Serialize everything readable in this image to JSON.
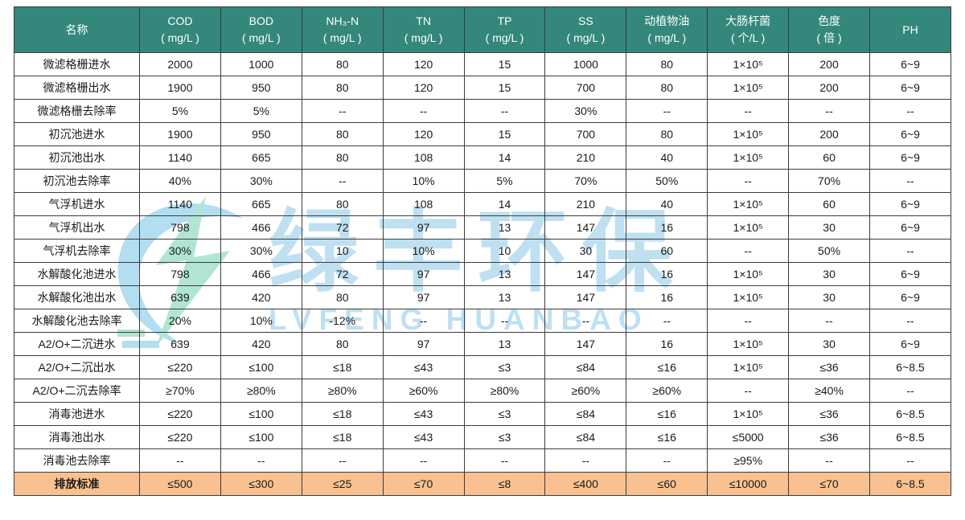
{
  "colors": {
    "header_bg": "#33877B",
    "header_text": "#FFFFFF",
    "highlight_row_bg": "#F9C18F",
    "grid_line": "#3C3C3C",
    "watermark": "#B7DDF0",
    "watermark_green": "#A9E3CD"
  },
  "watermark": {
    "text": "绿丰环保",
    "subtext": "LVFENG HUANBAO",
    "logo_icon": "lvfeng-logo"
  },
  "table": {
    "name_header": "名称",
    "columns": [
      {
        "label": "COD",
        "unit": "( mg/L )"
      },
      {
        "label": "BOD",
        "unit": "( mg/L )"
      },
      {
        "label": "NH₃-N",
        "unit": "( mg/L )"
      },
      {
        "label": "TN",
        "unit": "( mg/L )"
      },
      {
        "label": "TP",
        "unit": "( mg/L )"
      },
      {
        "label": "SS",
        "unit": "( mg/L )"
      },
      {
        "label": "动植物油",
        "unit": "( mg/L )"
      },
      {
        "label": "大肠杆菌",
        "unit": "( 个/L )"
      },
      {
        "label": "色度",
        "unit": "( 倍 )"
      },
      {
        "label": "PH",
        "unit": ""
      }
    ],
    "rows": [
      {
        "label": "微滤格栅进水",
        "values": [
          "2000",
          "1000",
          "80",
          "120",
          "15",
          "1000",
          "80",
          "1×10⁵",
          "200",
          "6~9"
        ],
        "highlight": false
      },
      {
        "label": "微滤格栅出水",
        "values": [
          "1900",
          "950",
          "80",
          "120",
          "15",
          "700",
          "80",
          "1×10⁵",
          "200",
          "6~9"
        ],
        "highlight": false
      },
      {
        "label": "微滤格栅去除率",
        "values": [
          "5%",
          "5%",
          "--",
          "--",
          "--",
          "30%",
          "--",
          "--",
          "--",
          "--"
        ],
        "highlight": false
      },
      {
        "label": "初沉池进水",
        "values": [
          "1900",
          "950",
          "80",
          "120",
          "15",
          "700",
          "80",
          "1×10⁵",
          "200",
          "6~9"
        ],
        "highlight": false
      },
      {
        "label": "初沉池出水",
        "values": [
          "1140",
          "665",
          "80",
          "108",
          "14",
          "210",
          "40",
          "1×10⁵",
          "60",
          "6~9"
        ],
        "highlight": false
      },
      {
        "label": "初沉池去除率",
        "values": [
          "40%",
          "30%",
          "--",
          "10%",
          "5%",
          "70%",
          "50%",
          "--",
          "70%",
          "--"
        ],
        "highlight": false
      },
      {
        "label": "气浮机进水",
        "values": [
          "1140",
          "665",
          "80",
          "108",
          "14",
          "210",
          "40",
          "1×10⁵",
          "60",
          "6~9"
        ],
        "highlight": false
      },
      {
        "label": "气浮机出水",
        "values": [
          "798",
          "466",
          "72",
          "97",
          "13",
          "147",
          "16",
          "1×10⁵",
          "30",
          "6~9"
        ],
        "highlight": false
      },
      {
        "label": "气浮机去除率",
        "values": [
          "30%",
          "30%",
          "10",
          "10%",
          "10",
          "30",
          "60",
          "--",
          "50%",
          "--"
        ],
        "highlight": false
      },
      {
        "label": "水解酸化池进水",
        "values": [
          "798",
          "466",
          "72",
          "97",
          "13",
          "147",
          "16",
          "1×10⁵",
          "30",
          "6~9"
        ],
        "highlight": false
      },
      {
        "label": "水解酸化池出水",
        "values": [
          "639",
          "420",
          "80",
          "97",
          "13",
          "147",
          "16",
          "1×10⁵",
          "30",
          "6~9"
        ],
        "highlight": false
      },
      {
        "label": "水解酸化池去除率",
        "values": [
          "20%",
          "10%",
          "-12%",
          "--",
          "--",
          "--",
          "--",
          "--",
          "--",
          "--"
        ],
        "highlight": false
      },
      {
        "label": "A2/O+二沉进水",
        "values": [
          "639",
          "420",
          "80",
          "97",
          "13",
          "147",
          "16",
          "1×10⁵",
          "30",
          "6~9"
        ],
        "highlight": false
      },
      {
        "label": "A2/O+二沉出水",
        "values": [
          "≤220",
          "≤100",
          "≤18",
          "≤43",
          "≤3",
          "≤84",
          "≤16",
          "1×10⁵",
          "≤36",
          "6~8.5"
        ],
        "highlight": false
      },
      {
        "label": "A2/O+二沉去除率",
        "values": [
          "≥70%",
          "≥80%",
          "≥80%",
          "≥60%",
          "≥80%",
          "≥60%",
          "≥60%",
          "--",
          "≥40%",
          "--"
        ],
        "highlight": false
      },
      {
        "label": "消毒池进水",
        "values": [
          "≤220",
          "≤100",
          "≤18",
          "≤43",
          "≤3",
          "≤84",
          "≤16",
          "1×10⁵",
          "≤36",
          "6~8.5"
        ],
        "highlight": false
      },
      {
        "label": "消毒池出水",
        "values": [
          "≤220",
          "≤100",
          "≤18",
          "≤43",
          "≤3",
          "≤84",
          "≤16",
          "≤5000",
          "≤36",
          "6~8.5"
        ],
        "highlight": false
      },
      {
        "label": "消毒池去除率",
        "values": [
          "--",
          "--",
          "--",
          "--",
          "--",
          "--",
          "--",
          "≥95%",
          "--",
          "--"
        ],
        "highlight": false
      },
      {
        "label": "排放标准",
        "values": [
          "≤500",
          "≤300",
          "≤25",
          "≤70",
          "≤8",
          "≤400",
          "≤60",
          "≤10000",
          "≤70",
          "6~8.5"
        ],
        "highlight": true
      }
    ]
  }
}
